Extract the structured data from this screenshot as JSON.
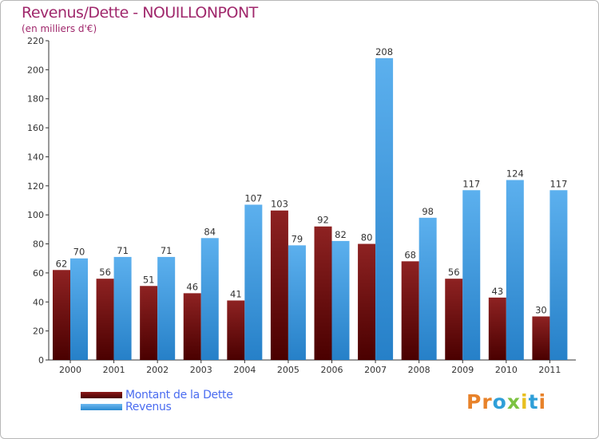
{
  "header": {
    "title": "Revenus/Dette - NOUILLONPONT",
    "subtitle": "(en milliers d'€)"
  },
  "chart_data": {
    "type": "bar",
    "title": "Revenus/Dette - NOUILLONPONT",
    "ylabel": "(en milliers d'€)",
    "xlabel": "",
    "ylim": [
      0,
      220
    ],
    "yticks": [
      0,
      20,
      40,
      60,
      80,
      100,
      120,
      140,
      160,
      180,
      200,
      220
    ],
    "grid": false,
    "categories": [
      "2000",
      "2001",
      "2002",
      "2003",
      "2004",
      "2005",
      "2006",
      "2007",
      "2008",
      "2009",
      "2010",
      "2011"
    ],
    "series": [
      {
        "name": "Montant de la Dette",
        "color": "#7a1010",
        "values": [
          62,
          56,
          51,
          46,
          41,
          103,
          92,
          80,
          68,
          56,
          43,
          30
        ]
      },
      {
        "name": "Revenus",
        "color": "#4da6e8",
        "values": [
          70,
          71,
          71,
          84,
          107,
          79,
          82,
          208,
          98,
          117,
          124,
          117
        ]
      }
    ]
  },
  "legend": {
    "dette_label": "Montant de la Dette",
    "revenus_label": "Revenus"
  },
  "logo": {
    "letters": [
      "P",
      "r",
      "o",
      "x",
      "i",
      "t",
      "i"
    ],
    "colors": [
      "#e8822a",
      "#e8822a",
      "#2f9fd8",
      "#7cc242",
      "#e8c020",
      "#2f9fd8",
      "#e8822a"
    ]
  }
}
